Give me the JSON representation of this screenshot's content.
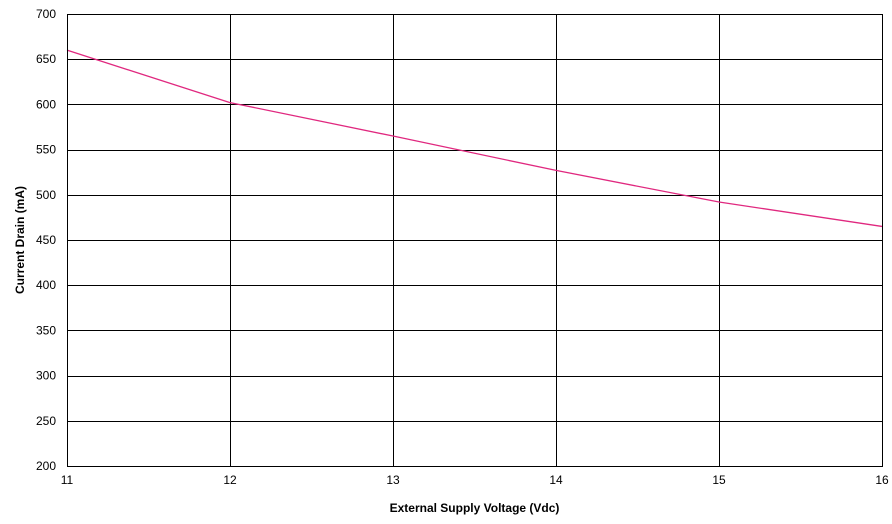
{
  "chart_data": {
    "type": "line",
    "title": "",
    "xlabel": "External Supply Voltage (Vdc)",
    "ylabel": "Current Drain (mA)",
    "xlim": [
      11,
      16
    ],
    "ylim": [
      200,
      700
    ],
    "xticks": [
      11,
      12,
      13,
      14,
      15,
      16
    ],
    "yticks": [
      200,
      250,
      300,
      350,
      400,
      450,
      500,
      550,
      600,
      650,
      700
    ],
    "grid": true,
    "legend": "none",
    "series": [
      {
        "color": "#e0287f",
        "x": [
          11,
          12,
          13,
          14,
          15,
          16
        ],
        "y": [
          660,
          602,
          565,
          527,
          492,
          465
        ]
      }
    ]
  }
}
